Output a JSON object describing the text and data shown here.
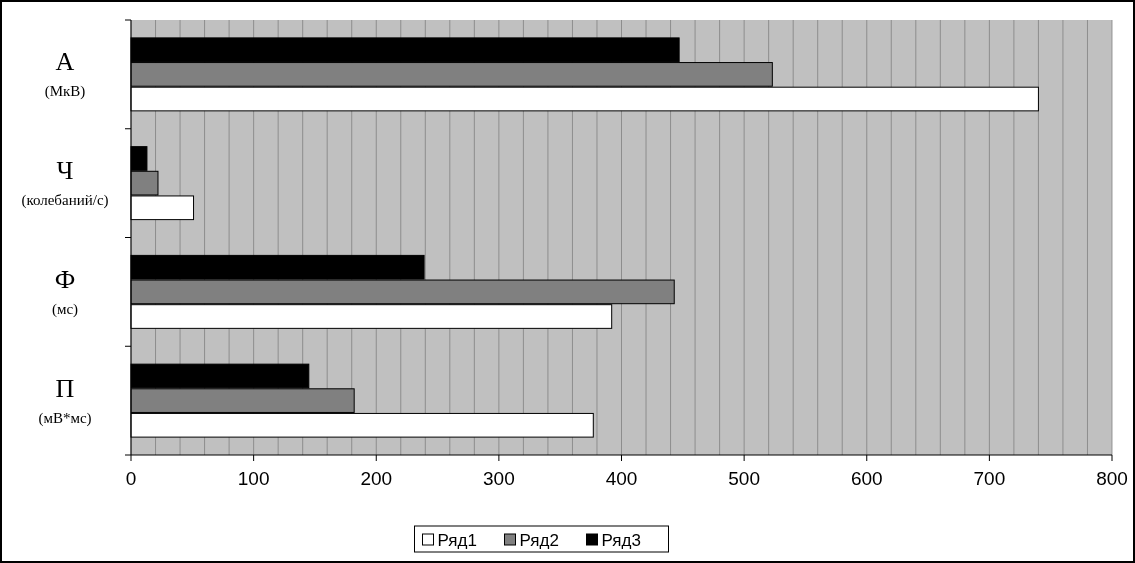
{
  "chart_data": {
    "type": "bar",
    "orientation": "horizontal",
    "categories": [
      "А\n(МкВ)",
      "Ч\n(колебаний/с)",
      "Ф\n(мс)",
      "П\n(мВ*мс)"
    ],
    "series": [
      {
        "name": "Ряд1",
        "color": "#ffffff",
        "values": [
          740,
          51,
          392,
          377
        ]
      },
      {
        "name": "Ряд2",
        "color": "#808080",
        "values": [
          523,
          22,
          443,
          182
        ]
      },
      {
        "name": "Ряд3",
        "color": "#000000",
        "values": [
          447,
          13,
          239,
          145
        ]
      }
    ],
    "xlim": [
      0,
      800
    ],
    "xticks": [
      0,
      {
        "value": 20,
        "label": null
      },
      {
        "value": 40,
        "label": null
      },
      {
        "value": 60,
        "label": null
      },
      {
        "value": 80,
        "label": null
      },
      100,
      {
        "value": 120,
        "label": null
      },
      {
        "value": 140,
        "label": null
      },
      {
        "value": 160,
        "label": null
      },
      {
        "value": 180,
        "label": null
      },
      200,
      {
        "value": 220,
        "label": null
      },
      {
        "value": 240,
        "label": null
      },
      {
        "value": 260,
        "label": null
      },
      {
        "value": 280,
        "label": null
      },
      300,
      {
        "value": 320,
        "label": null
      },
      {
        "value": 340,
        "label": null
      },
      {
        "value": 360,
        "label": null
      },
      {
        "value": 380,
        "label": null
      },
      400,
      {
        "value": 420,
        "label": null
      },
      {
        "value": 440,
        "label": null
      },
      {
        "value": 460,
        "label": null
      },
      {
        "value": 480,
        "label": null
      },
      500,
      {
        "value": 520,
        "label": null
      },
      {
        "value": 540,
        "label": null
      },
      {
        "value": 560,
        "label": null
      },
      {
        "value": 580,
        "label": null
      },
      600,
      {
        "value": 620,
        "label": null
      },
      {
        "value": 640,
        "label": null
      },
      {
        "value": 660,
        "label": null
      },
      {
        "value": 680,
        "label": null
      },
      700,
      {
        "value": 720,
        "label": null
      },
      {
        "value": 740,
        "label": null
      },
      {
        "value": 760,
        "label": null
      },
      {
        "value": 780,
        "label": null
      },
      800
    ],
    "grid": "x",
    "legend": "bottom"
  }
}
